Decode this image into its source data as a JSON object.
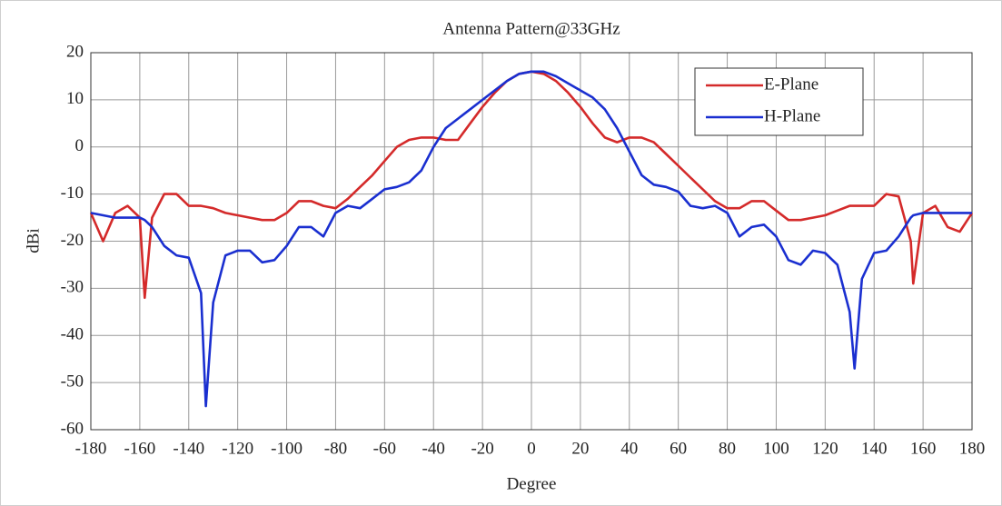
{
  "chart_data": {
    "type": "line",
    "title": "Antenna Pattern@33GHz",
    "x_label": "Degree",
    "y_label": "dBi",
    "x": [
      -180,
      -175,
      -170,
      -165,
      -160,
      -158,
      -155,
      -150,
      -145,
      -140,
      -135,
      -133,
      -130,
      -125,
      -120,
      -115,
      -110,
      -105,
      -100,
      -95,
      -90,
      -85,
      -80,
      -75,
      -70,
      -65,
      -60,
      -55,
      -50,
      -45,
      -40,
      -35,
      -30,
      -25,
      -20,
      -15,
      -10,
      -5,
      0,
      5,
      10,
      15,
      20,
      25,
      30,
      35,
      40,
      45,
      50,
      55,
      60,
      65,
      70,
      75,
      80,
      85,
      90,
      95,
      100,
      105,
      110,
      115,
      120,
      125,
      130,
      132,
      135,
      140,
      145,
      150,
      155,
      156,
      160,
      165,
      170,
      175,
      180
    ],
    "series": [
      {
        "name": "E-Plane",
        "color": "#d42a2a",
        "values": [
          -14,
          -20,
          -14,
          -12.5,
          -15,
          -32,
          -15,
          -10,
          -10,
          -12.5,
          -12.5,
          -12.7,
          -13,
          -14,
          -14.5,
          -15,
          -15.5,
          -15.5,
          -14,
          -11.5,
          -11.5,
          -12.5,
          -13,
          -11,
          -8.5,
          -6,
          -3,
          0,
          1.5,
          2,
          2,
          1.5,
          1.5,
          5,
          8.5,
          11.5,
          14,
          15.5,
          16,
          15.5,
          14,
          11.5,
          8.5,
          5,
          2,
          1,
          2,
          2,
          1,
          -1.5,
          -4,
          -6.5,
          -9,
          -11.5,
          -13,
          -13,
          -11.5,
          -11.5,
          -13.5,
          -15.5,
          -15.5,
          -15,
          -14.5,
          -13.5,
          -12.5,
          -12.5,
          -12.5,
          -12.5,
          -10,
          -10.5,
          -20,
          -29,
          -14,
          -12.5,
          -17,
          -18,
          -14
        ]
      },
      {
        "name": "H-Plane",
        "color": "#1a2fd0",
        "values": [
          -14,
          -14.5,
          -15,
          -15,
          -15,
          -15.5,
          -17,
          -21,
          -23,
          -23.5,
          -31,
          -55,
          -33,
          -23,
          -22,
          -22,
          -24.5,
          -24,
          -21,
          -17,
          -17,
          -19,
          -14,
          -12.5,
          -13,
          -11,
          -9,
          -8.5,
          -7.5,
          -5,
          0,
          4,
          6,
          8,
          10,
          12,
          14,
          15.5,
          16,
          16,
          15,
          13.5,
          12,
          10.5,
          8,
          4,
          -1,
          -6,
          -8,
          -8.5,
          -9.5,
          -12.5,
          -13,
          -12.5,
          -14,
          -19,
          -17,
          -16.5,
          -19,
          -24,
          -25,
          -22,
          -22.5,
          -25,
          -35,
          -47,
          -28,
          -22.5,
          -22,
          -19,
          -15,
          -14.5,
          -14,
          -14,
          -14,
          -14,
          -14
        ]
      }
    ],
    "xlim": [
      -180,
      180
    ],
    "ylim": [
      -60,
      20
    ],
    "xticks": [
      -180,
      -160,
      -140,
      -120,
      -100,
      -80,
      -60,
      -40,
      -20,
      0,
      20,
      40,
      60,
      80,
      100,
      120,
      140,
      160,
      180
    ],
    "yticks": [
      -60,
      -50,
      -40,
      -30,
      -20,
      -10,
      0,
      10,
      20
    ],
    "grid": true,
    "legend": "upper right"
  }
}
